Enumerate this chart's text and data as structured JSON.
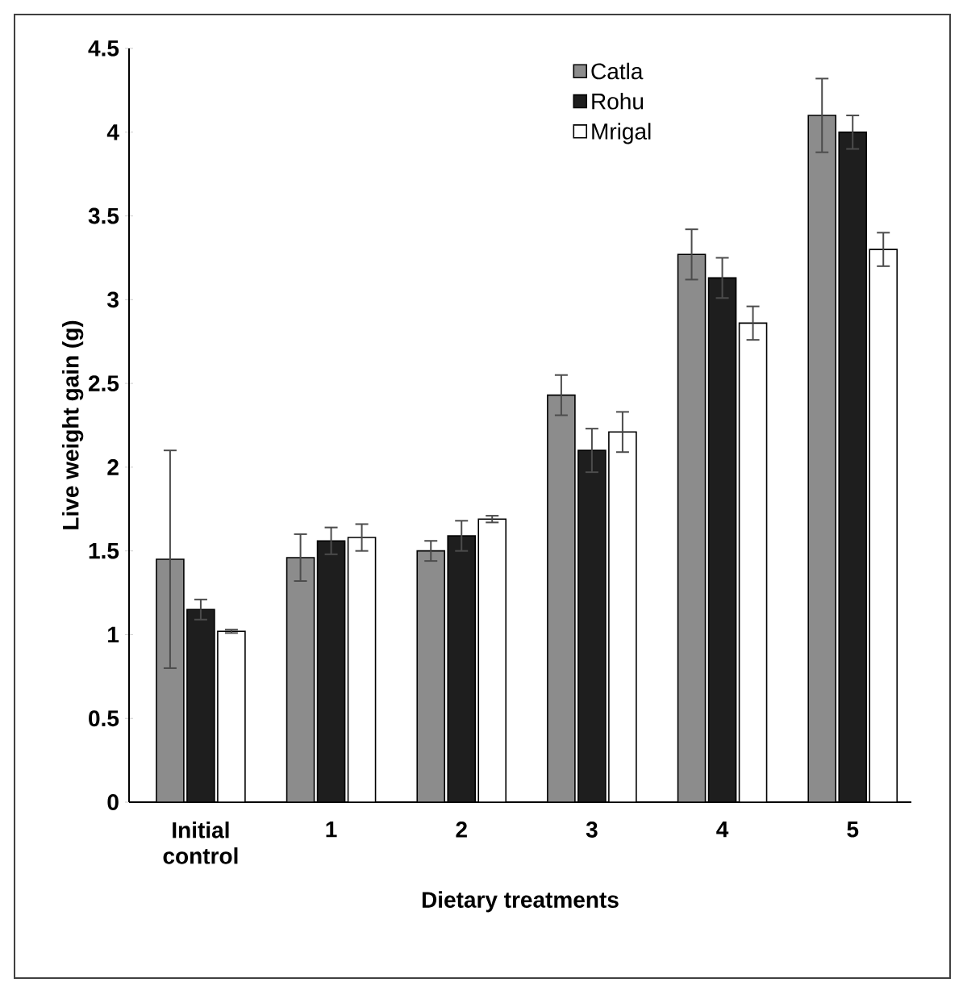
{
  "chart_data": {
    "type": "bar",
    "xlabel": "Dietary treatments",
    "ylabel": "Live weight gain (g)",
    "categories": [
      "Initial control",
      "1",
      "2",
      "3",
      "4",
      "5"
    ],
    "series": [
      {
        "name": "Catla",
        "color": "#8c8c8c",
        "values": [
          1.45,
          1.46,
          1.5,
          2.43,
          3.27,
          4.1
        ],
        "errors": [
          0.65,
          0.14,
          0.06,
          0.12,
          0.15,
          0.22
        ]
      },
      {
        "name": "Rohu",
        "color": "#1e1e1e",
        "values": [
          1.15,
          1.56,
          1.59,
          2.1,
          3.13,
          4.0
        ],
        "errors": [
          0.06,
          0.08,
          0.09,
          0.13,
          0.12,
          0.1
        ]
      },
      {
        "name": "Mrigal",
        "color": "#ffffff",
        "values": [
          1.02,
          1.58,
          1.69,
          2.21,
          2.86,
          3.3
        ],
        "errors": [
          0.01,
          0.08,
          0.02,
          0.12,
          0.1,
          0.1
        ]
      }
    ],
    "ylim": [
      0,
      4.5
    ],
    "yticks": [
      0,
      0.5,
      1,
      1.5,
      2,
      2.5,
      3,
      3.5,
      4,
      4.5
    ],
    "legend": "top"
  }
}
